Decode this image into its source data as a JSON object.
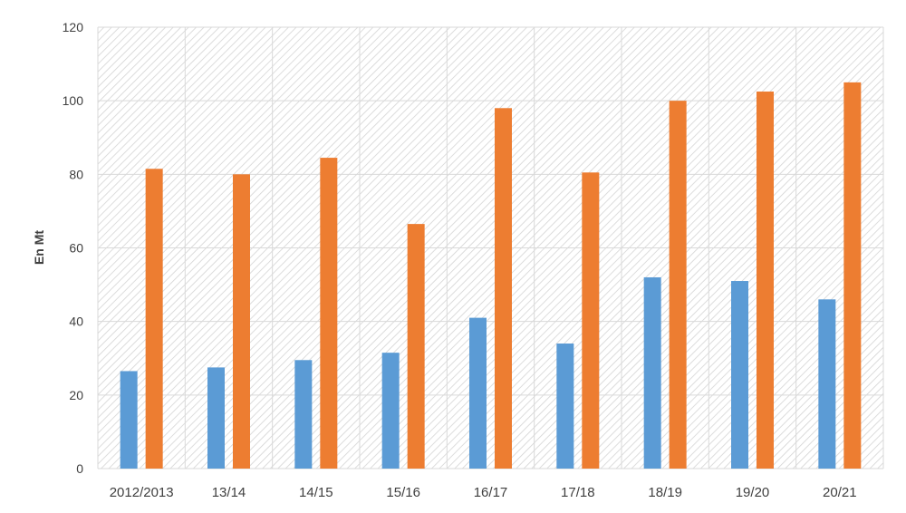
{
  "chart_data": {
    "type": "bar",
    "categories": [
      "2012/2013",
      "13/14",
      "14/15",
      "15/16",
      "16/17",
      "17/18",
      "18/19",
      "19/20",
      "20/21"
    ],
    "series": [
      {
        "color": "#5b9bd5",
        "values": [
          26.5,
          27.5,
          29.5,
          31.5,
          41,
          34,
          52,
          51,
          46
        ]
      },
      {
        "color": "#ed7d31",
        "values": [
          81.5,
          80,
          84.5,
          66.5,
          98,
          80.5,
          100,
          102.5,
          105
        ]
      }
    ],
    "ylabel": "En Mt",
    "ylim": [
      0,
      120
    ],
    "yticks": [
      0,
      20,
      40,
      60,
      80,
      100,
      120
    ],
    "grid": true,
    "legend": "none",
    "plot_background": "hatched"
  }
}
